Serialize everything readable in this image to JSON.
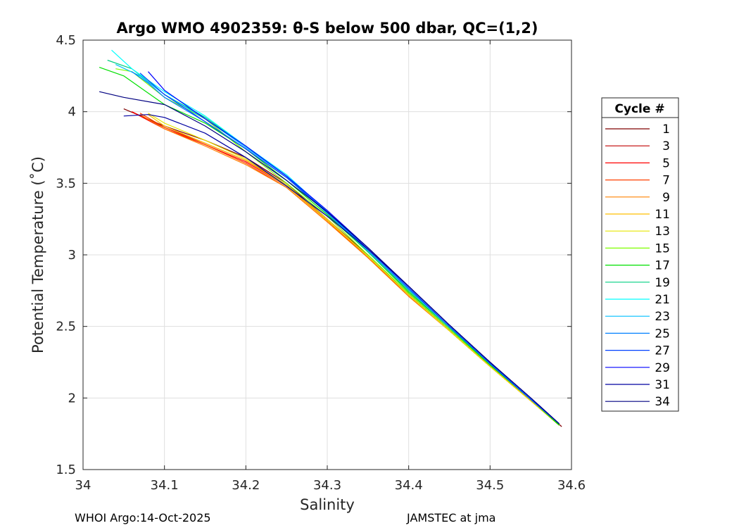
{
  "chart_data": {
    "type": "line",
    "title": "Argo WMO 4902359: θ-S below 500 dbar,  QC=(1,2)",
    "xlabel": "Salinity",
    "ylabel": "Potential Temperature (˚C)",
    "xlim": [
      34,
      34.6
    ],
    "ylim": [
      1.5,
      4.5
    ],
    "xticks": [
      34,
      34.1,
      34.2,
      34.3,
      34.4,
      34.5,
      34.6
    ],
    "xtick_labels": [
      "34",
      "34.1",
      "34.2",
      "34.3",
      "34.4",
      "34.5",
      "34.6"
    ],
    "yticks": [
      1.5,
      2,
      2.5,
      3,
      3.5,
      4,
      4.5
    ],
    "ytick_labels": [
      "1.5",
      "2",
      "2.5",
      "3",
      "3.5",
      "4",
      "4.5"
    ],
    "grid": true,
    "legend": {
      "title": "Cycle #",
      "placement": "right",
      "entries": [
        "1",
        "3",
        "5",
        "7",
        "9",
        "11",
        "13",
        "15",
        "17",
        "19",
        "21",
        "23",
        "25",
        "27",
        "29",
        "31",
        "34"
      ]
    },
    "series": [
      {
        "name": "1",
        "color": "#800000",
        "x": [
          34.05,
          34.1,
          34.15,
          34.2,
          34.25,
          34.3,
          34.35,
          34.4,
          34.45,
          34.5,
          34.55,
          34.588
        ],
        "y": [
          4.02,
          3.9,
          3.8,
          3.68,
          3.5,
          3.25,
          3.0,
          2.73,
          2.48,
          2.23,
          1.99,
          1.8
        ]
      },
      {
        "name": "3",
        "color": "#c00000",
        "x": [
          34.06,
          34.1,
          34.15,
          34.2,
          34.25,
          34.3,
          34.35,
          34.4,
          34.45,
          34.5,
          34.55,
          34.585
        ],
        "y": [
          4.0,
          3.89,
          3.78,
          3.66,
          3.49,
          3.24,
          2.99,
          2.72,
          2.47,
          2.22,
          1.98,
          1.81
        ]
      },
      {
        "name": "5",
        "color": "#ff0000",
        "x": [
          34.06,
          34.1,
          34.15,
          34.2,
          34.25,
          34.3,
          34.35,
          34.4,
          34.45,
          34.5,
          34.55,
          34.585
        ],
        "y": [
          4.0,
          3.88,
          3.77,
          3.65,
          3.48,
          3.24,
          2.98,
          2.72,
          2.47,
          2.22,
          1.98,
          1.81
        ]
      },
      {
        "name": "7",
        "color": "#ff4000",
        "x": [
          34.07,
          34.1,
          34.15,
          34.2,
          34.25,
          34.3,
          34.35,
          34.4,
          34.45,
          34.5,
          34.55,
          34.585
        ],
        "y": [
          3.99,
          3.89,
          3.77,
          3.64,
          3.47,
          3.23,
          2.98,
          2.71,
          2.47,
          2.22,
          1.98,
          1.81
        ]
      },
      {
        "name": "9",
        "color": "#ff8000",
        "x": [
          34.07,
          34.1,
          34.15,
          34.2,
          34.25,
          34.3,
          34.35,
          34.4,
          34.45,
          34.5,
          34.55,
          34.585
        ],
        "y": [
          3.98,
          3.88,
          3.76,
          3.63,
          3.47,
          3.23,
          2.98,
          2.71,
          2.47,
          2.22,
          1.98,
          1.81
        ]
      },
      {
        "name": "11",
        "color": "#ffbf00",
        "x": [
          34.08,
          34.1,
          34.15,
          34.2,
          34.25,
          34.3,
          34.35,
          34.4,
          34.45,
          34.5,
          34.55,
          34.585
        ],
        "y": [
          3.98,
          3.9,
          3.78,
          3.66,
          3.48,
          3.24,
          2.99,
          2.72,
          2.47,
          2.22,
          1.98,
          1.81
        ]
      },
      {
        "name": "13",
        "color": "#e6e600",
        "x": [
          34.08,
          34.1,
          34.15,
          34.2,
          34.25,
          34.3,
          34.35,
          34.4,
          34.45,
          34.5,
          34.55,
          34.585
        ],
        "y": [
          3.99,
          3.92,
          3.8,
          3.67,
          3.49,
          3.25,
          2.99,
          2.72,
          2.47,
          2.22,
          1.98,
          1.81
        ]
      },
      {
        "name": "15",
        "color": "#80ff00",
        "x": [
          34.04,
          34.06,
          34.1,
          34.15,
          34.2,
          34.25,
          34.3,
          34.35,
          34.4,
          34.45,
          34.5,
          34.55,
          34.585
        ],
        "y": [
          4.3,
          4.28,
          4.1,
          3.95,
          3.72,
          3.5,
          3.27,
          3.0,
          2.73,
          2.48,
          2.23,
          1.99,
          1.81
        ]
      },
      {
        "name": "17",
        "color": "#00e000",
        "x": [
          34.02,
          34.05,
          34.1,
          34.15,
          34.2,
          34.25,
          34.3,
          34.35,
          34.4,
          34.45,
          34.5,
          34.55,
          34.585
        ],
        "y": [
          4.31,
          4.25,
          4.05,
          3.92,
          3.74,
          3.52,
          3.28,
          3.02,
          2.74,
          2.49,
          2.23,
          1.99,
          1.81
        ]
      },
      {
        "name": "19",
        "color": "#00d080",
        "x": [
          34.03,
          34.06,
          34.1,
          34.15,
          34.2,
          34.25,
          34.3,
          34.35,
          34.4,
          34.45,
          34.5,
          34.55,
          34.585
        ],
        "y": [
          4.36,
          4.3,
          4.12,
          3.96,
          3.76,
          3.55,
          3.29,
          3.02,
          2.75,
          2.49,
          2.24,
          1.99,
          1.82
        ]
      },
      {
        "name": "21",
        "color": "#00ffff",
        "x": [
          34.035,
          34.06,
          34.1,
          34.15,
          34.2,
          34.25,
          34.3,
          34.35,
          34.4,
          34.45,
          34.5,
          34.55,
          34.585
        ],
        "y": [
          4.43,
          4.3,
          4.14,
          3.97,
          3.76,
          3.56,
          3.3,
          3.03,
          2.76,
          2.5,
          2.24,
          1.99,
          1.82
        ]
      },
      {
        "name": "23",
        "color": "#00bfff",
        "x": [
          34.04,
          34.07,
          34.1,
          34.15,
          34.2,
          34.25,
          34.3,
          34.35,
          34.4,
          34.45,
          34.5,
          34.55,
          34.585
        ],
        "y": [
          4.33,
          4.25,
          4.12,
          3.95,
          3.75,
          3.55,
          3.29,
          3.03,
          2.76,
          2.5,
          2.24,
          1.99,
          1.82
        ]
      },
      {
        "name": "25",
        "color": "#0080ff",
        "x": [
          34.06,
          34.08,
          34.1,
          34.15,
          34.2,
          34.25,
          34.3,
          34.35,
          34.4,
          34.45,
          34.5,
          34.55,
          34.585
        ],
        "y": [
          4.28,
          4.2,
          4.1,
          3.93,
          3.74,
          3.54,
          3.29,
          3.03,
          2.76,
          2.5,
          2.24,
          1.99,
          1.82
        ]
      },
      {
        "name": "27",
        "color": "#0040ff",
        "x": [
          34.07,
          34.1,
          34.15,
          34.2,
          34.25,
          34.3,
          34.35,
          34.4,
          34.45,
          34.5,
          34.55,
          34.585
        ],
        "y": [
          4.27,
          4.12,
          3.93,
          3.74,
          3.54,
          3.3,
          3.04,
          2.77,
          2.5,
          2.24,
          1.99,
          1.82
        ]
      },
      {
        "name": "29",
        "color": "#0000ff",
        "x": [
          34.08,
          34.1,
          34.15,
          34.2,
          34.25,
          34.3,
          34.35,
          34.4,
          34.45,
          34.5,
          34.55,
          34.585
        ],
        "y": [
          4.28,
          4.15,
          3.95,
          3.76,
          3.55,
          3.31,
          3.05,
          2.78,
          2.51,
          2.25,
          2.0,
          1.82
        ]
      },
      {
        "name": "31",
        "color": "#0000a0",
        "x": [
          34.05,
          34.08,
          34.1,
          34.15,
          34.2,
          34.25,
          34.3,
          34.35,
          34.4,
          34.45,
          34.5,
          34.55,
          34.585
        ],
        "y": [
          3.97,
          3.98,
          3.96,
          3.85,
          3.68,
          3.48,
          3.27,
          3.04,
          2.78,
          2.51,
          2.25,
          2.0,
          1.82
        ]
      },
      {
        "name": "34",
        "color": "#000080",
        "x": [
          34.02,
          34.05,
          34.1,
          34.15,
          34.2,
          34.25,
          34.3,
          34.35,
          34.4,
          34.45,
          34.5,
          34.55,
          34.585
        ],
        "y": [
          4.14,
          4.1,
          4.05,
          3.9,
          3.72,
          3.52,
          3.3,
          3.05,
          2.78,
          2.51,
          2.25,
          2.0,
          1.82
        ]
      }
    ]
  },
  "footer": {
    "left": "WHOI Argo:14-Oct-2025",
    "right": "JAMSTEC at jma"
  }
}
